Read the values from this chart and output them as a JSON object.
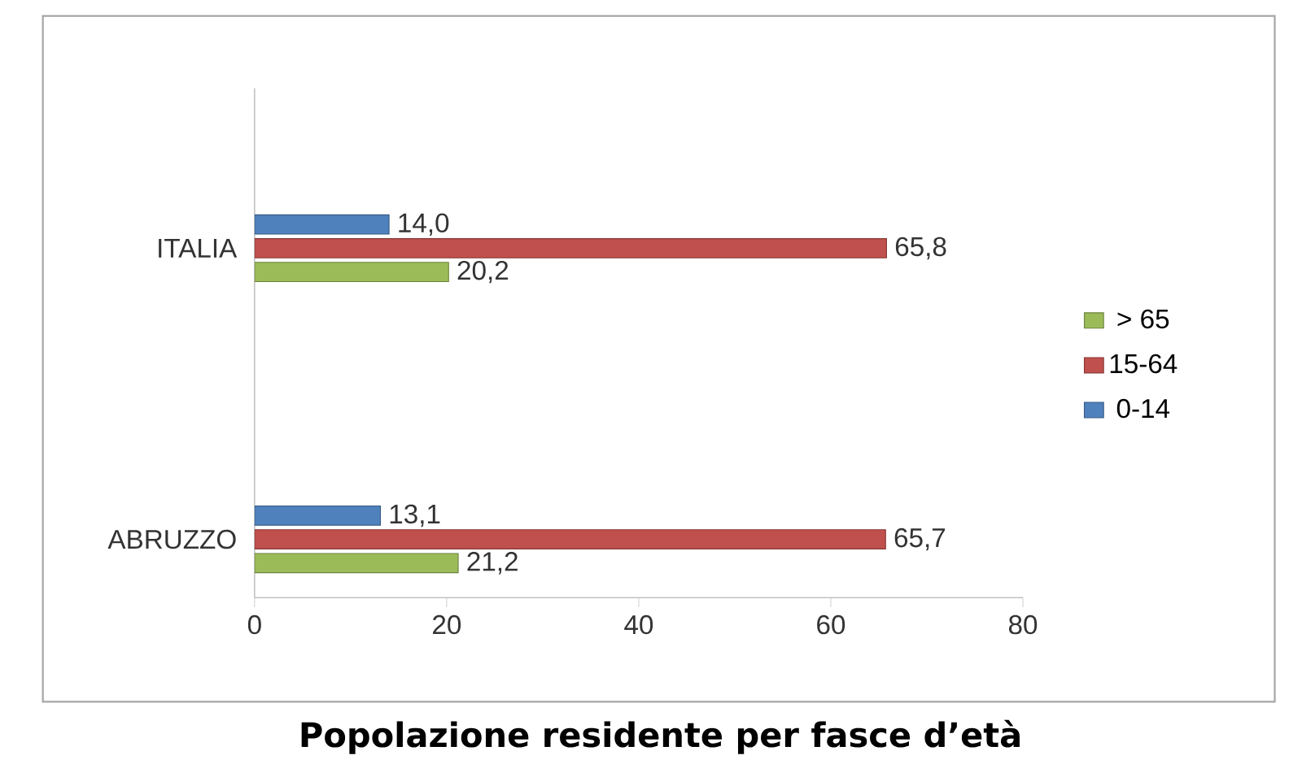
{
  "chart_data": {
    "type": "bar",
    "orientation": "horizontal",
    "title": "Popolazione residente per fasce d’età",
    "categories": [
      "ITALIA",
      "ABRUZZO"
    ],
    "series": [
      {
        "name": "> 65",
        "color": "#9bbb59",
        "values": [
          20.2,
          21.2
        ],
        "value_labels": [
          "20,2",
          "21,2"
        ]
      },
      {
        "name": "15-64",
        "color": "#c0504d",
        "values": [
          65.8,
          65.7
        ],
        "value_labels": [
          "65,8",
          "65,7"
        ]
      },
      {
        "name": "0-14",
        "color": "#4f81bd",
        "values": [
          14.0,
          13.1
        ],
        "value_labels": [
          "14,0",
          "13,1"
        ]
      }
    ],
    "xlim": [
      0,
      80
    ],
    "xticks": [
      0,
      20,
      40,
      60,
      80
    ],
    "grid": false,
    "legend": "right"
  }
}
